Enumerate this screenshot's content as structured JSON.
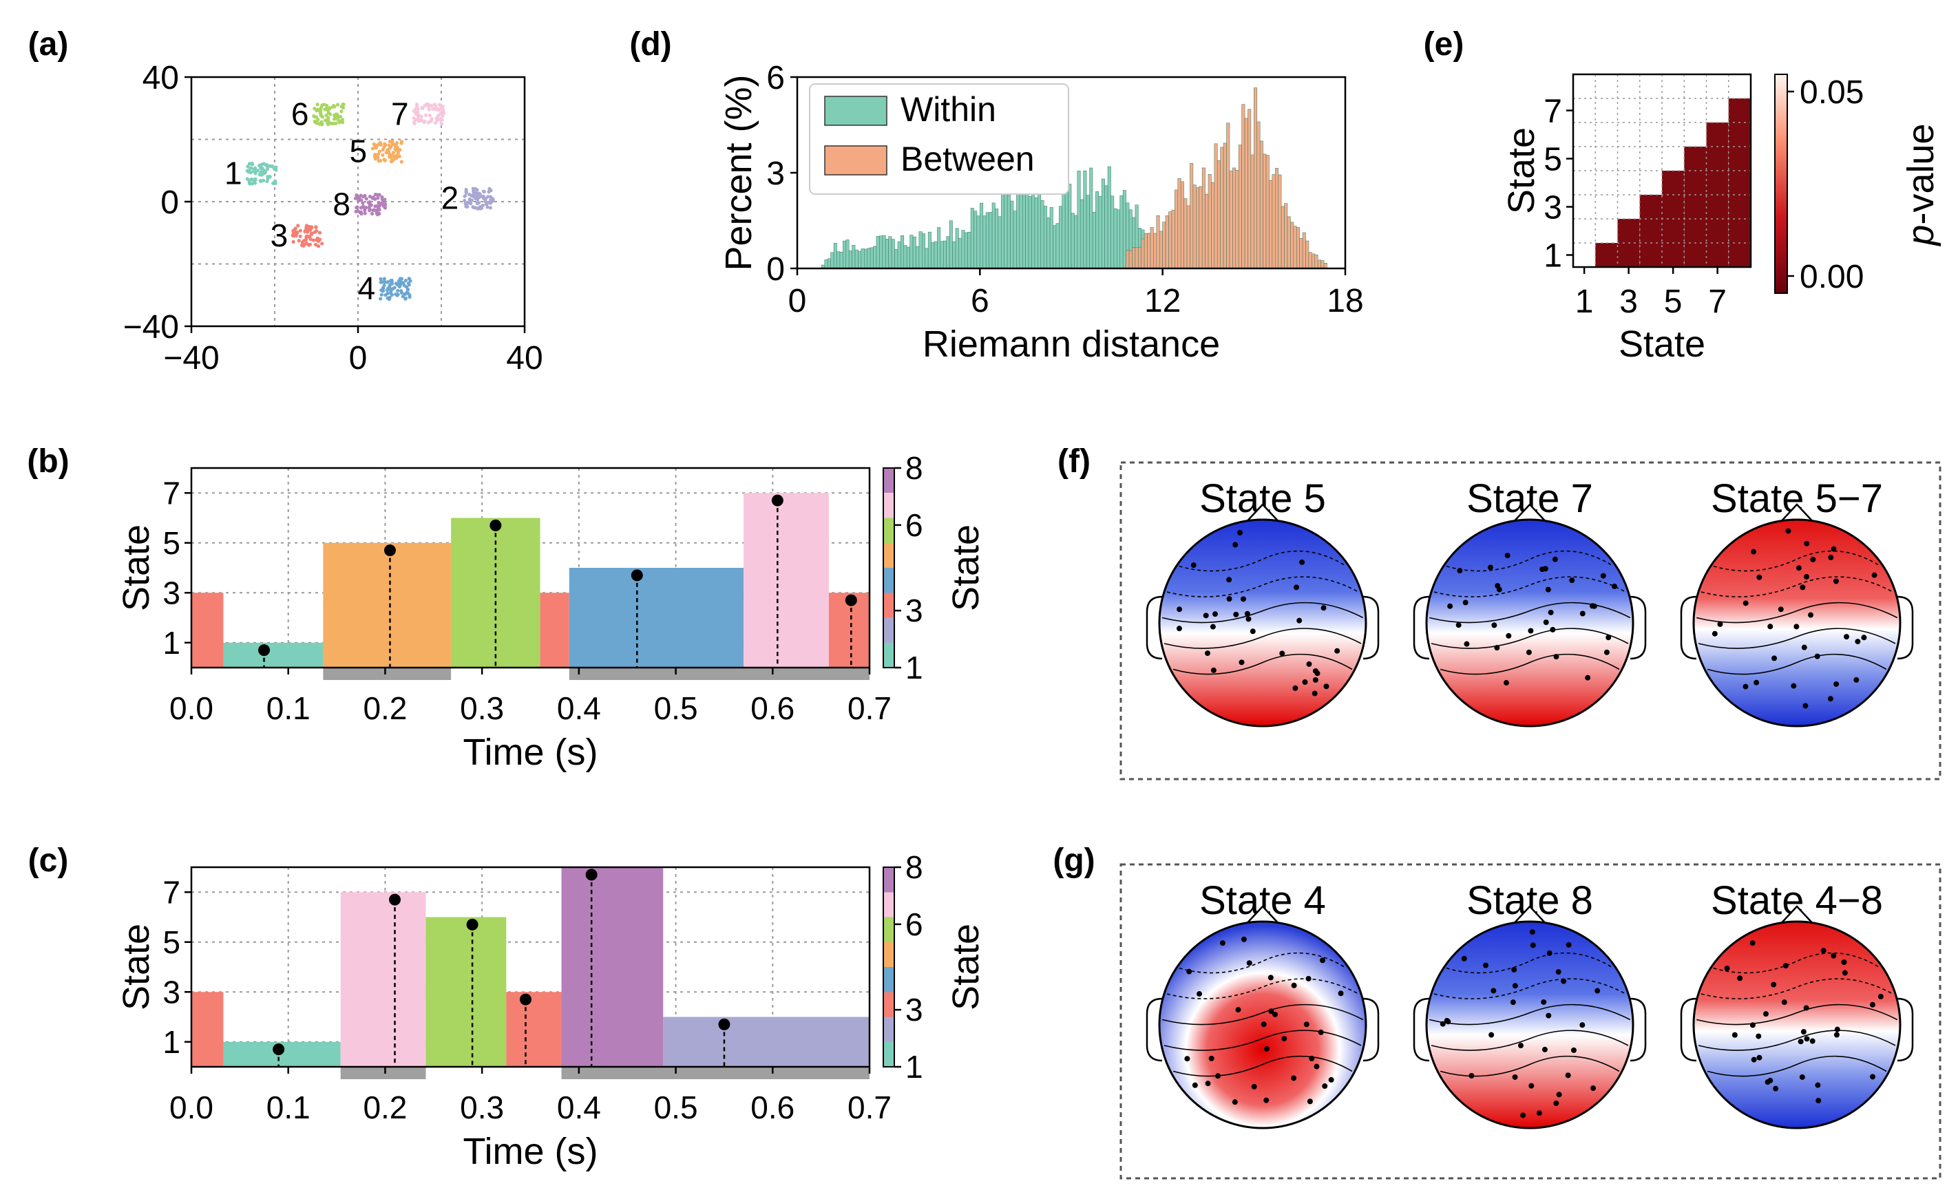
{
  "panel_labels": [
    "(a)",
    "(b)",
    "(c)",
    "(d)",
    "(e)",
    "(f)",
    "(g)"
  ],
  "state_colors": [
    "#7ccfba",
    "#a9a8d2",
    "#f47f72",
    "#6ba6d0",
    "#f6ae62",
    "#a8d661",
    "#f7c7dd",
    "#b57fba"
  ],
  "chart_data": [
    {
      "id": "a",
      "type": "scatter",
      "title": "",
      "xlabel": "",
      "ylabel": "",
      "xlim": [
        -40,
        40
      ],
      "ylim": [
        -40,
        40
      ],
      "xticks": [
        -40,
        0,
        40
      ],
      "yticks": [
        -40,
        0,
        40
      ],
      "xtick_labels": [
        "−40",
        "0",
        "40"
      ],
      "ytick_labels": [
        "−40",
        "0",
        "40"
      ],
      "grid": true,
      "clusters": [
        {
          "label": "1",
          "x": -23,
          "y": 9
        },
        {
          "label": "2",
          "x": 29,
          "y": 1
        },
        {
          "label": "3",
          "x": -12,
          "y": -11
        },
        {
          "label": "4",
          "x": 9,
          "y": -28
        },
        {
          "label": "5",
          "x": 7,
          "y": 16
        },
        {
          "label": "6",
          "x": -7,
          "y": 28
        },
        {
          "label": "7",
          "x": 17,
          "y": 28
        },
        {
          "label": "8",
          "x": 3,
          "y": -1
        }
      ]
    },
    {
      "id": "b",
      "type": "bar",
      "xlabel": "Time (s)",
      "ylabel": "State",
      "xlim": [
        0,
        0.7
      ],
      "ylim": [
        0,
        8
      ],
      "xticks": [
        0.0,
        0.1,
        0.2,
        0.3,
        0.4,
        0.5,
        0.6,
        0.7
      ],
      "xtick_labels": [
        "0.0",
        "0.1",
        "0.2",
        "0.3",
        "0.4",
        "0.5",
        "0.6",
        "0.7"
      ],
      "yticks": [
        1,
        3,
        5,
        7
      ],
      "ytick_labels": [
        "1",
        "3",
        "5",
        "7"
      ],
      "colorbar": {
        "label": "State",
        "ticks": [
          "1",
          "3",
          "6",
          "8"
        ]
      },
      "segments": [
        {
          "start": 0.0,
          "end": 0.033,
          "state": 3
        },
        {
          "start": 0.033,
          "end": 0.136,
          "state": 1
        },
        {
          "start": 0.136,
          "end": 0.268,
          "state": 5
        },
        {
          "start": 0.268,
          "end": 0.36,
          "state": 6
        },
        {
          "start": 0.36,
          "end": 0.39,
          "state": 3
        },
        {
          "start": 0.39,
          "end": 0.57,
          "state": 4
        },
        {
          "start": 0.57,
          "end": 0.658,
          "state": 7
        },
        {
          "start": 0.658,
          "end": 0.7,
          "state": 3
        }
      ],
      "markers": [
        {
          "t": 0.075,
          "state": 1
        },
        {
          "t": 0.205,
          "state": 5
        },
        {
          "t": 0.314,
          "state": 6
        },
        {
          "t": 0.46,
          "state": 4
        },
        {
          "t": 0.605,
          "state": 7
        },
        {
          "t": 0.681,
          "state": 3
        }
      ],
      "gray_bars": [
        [
          0.136,
          0.268
        ],
        [
          0.39,
          0.7
        ]
      ]
    },
    {
      "id": "c",
      "type": "bar",
      "xlabel": "Time (s)",
      "ylabel": "State",
      "xlim": [
        0,
        0.7
      ],
      "ylim": [
        0,
        8
      ],
      "xticks": [
        0.0,
        0.1,
        0.2,
        0.3,
        0.4,
        0.5,
        0.6,
        0.7
      ],
      "xtick_labels": [
        "0.0",
        "0.1",
        "0.2",
        "0.3",
        "0.4",
        "0.5",
        "0.6",
        "0.7"
      ],
      "yticks": [
        1,
        3,
        5,
        7
      ],
      "ytick_labels": [
        "1",
        "3",
        "5",
        "7"
      ],
      "colorbar": {
        "label": "State",
        "ticks": [
          "1",
          "3",
          "6",
          "8"
        ]
      },
      "segments": [
        {
          "start": 0.0,
          "end": 0.033,
          "state": 3
        },
        {
          "start": 0.033,
          "end": 0.154,
          "state": 1
        },
        {
          "start": 0.154,
          "end": 0.242,
          "state": 7
        },
        {
          "start": 0.242,
          "end": 0.325,
          "state": 6
        },
        {
          "start": 0.325,
          "end": 0.382,
          "state": 3
        },
        {
          "start": 0.382,
          "end": 0.487,
          "state": 8
        },
        {
          "start": 0.487,
          "end": 0.7,
          "state": 2
        }
      ],
      "markers": [
        {
          "t": 0.09,
          "state": 1
        },
        {
          "t": 0.21,
          "state": 7
        },
        {
          "t": 0.29,
          "state": 6
        },
        {
          "t": 0.345,
          "state": 3
        },
        {
          "t": 0.413,
          "state": 8
        },
        {
          "t": 0.55,
          "state": 2
        }
      ],
      "gray_bars": [
        [
          0.154,
          0.242
        ],
        [
          0.382,
          0.7
        ]
      ]
    },
    {
      "id": "d",
      "type": "histogram",
      "xlabel": "Riemann distance",
      "ylabel": "Percent (%)",
      "xlim": [
        0,
        18
      ],
      "ylim": [
        0,
        6
      ],
      "xticks": [
        0,
        6,
        12,
        18
      ],
      "xtick_labels": [
        "0",
        "6",
        "12",
        "18"
      ],
      "yticks": [
        0,
        3,
        6
      ],
      "ytick_labels": [
        "0",
        "3",
        "6"
      ],
      "legend_position": "top-left",
      "series": [
        {
          "name": "Within",
          "color": "#7fcdb5",
          "x": [
            0.8,
            1.2,
            1.8,
            2.4,
            3.0,
            3.6,
            4.2,
            4.8,
            5.4,
            6.0,
            6.6,
            7.2,
            7.8,
            8.4,
            9.0,
            9.6,
            10.2,
            10.8,
            11.4
          ],
          "values": [
            0.1,
            0.7,
            0.7,
            0.8,
            0.8,
            0.9,
            0.9,
            1.2,
            1.2,
            1.8,
            2.2,
            2.6,
            2.4,
            1.9,
            2.3,
            2.5,
            2.6,
            2.4,
            0.8
          ]
        },
        {
          "name": "Between",
          "color": "#f4a982",
          "x": [
            10.8,
            11.4,
            12.0,
            12.6,
            13.2,
            13.8,
            14.4,
            15.0,
            15.6,
            16.2,
            16.8,
            17.4
          ],
          "values": [
            0.6,
            1.0,
            1.6,
            2.3,
            2.8,
            3.7,
            4.0,
            4.4,
            3.4,
            1.6,
            0.5,
            0.1
          ]
        }
      ]
    },
    {
      "id": "e",
      "type": "heatmap",
      "xlabel": "State",
      "ylabel": "State",
      "xtick_labels": [
        "1",
        "3",
        "5",
        "7"
      ],
      "ytick_labels": [
        "1",
        "3",
        "5",
        "7"
      ],
      "colorbar": {
        "label": "p-value",
        "label_italic": "p",
        "label_rest": "-value",
        "ticks": [
          "0.00",
          "0.05"
        ],
        "range": [
          0,
          0.05
        ]
      },
      "description": "lower-triangular significant pairs",
      "value_lower": 0.0,
      "value_upper": 0.05
    }
  ],
  "topomaps": {
    "f": [
      {
        "title": "State 5",
        "pattern": "front-blue-back-red"
      },
      {
        "title": "State 7",
        "pattern": "front-blue-back-red"
      },
      {
        "title": "State 5−7",
        "pattern": "front-red-back-blue"
      }
    ],
    "g": [
      {
        "title": "State 4",
        "pattern": "front-blue-center-red"
      },
      {
        "title": "State 8",
        "pattern": "front-blue-back-red"
      },
      {
        "title": "State 4−8",
        "pattern": "front-red-back-blue"
      }
    ]
  }
}
